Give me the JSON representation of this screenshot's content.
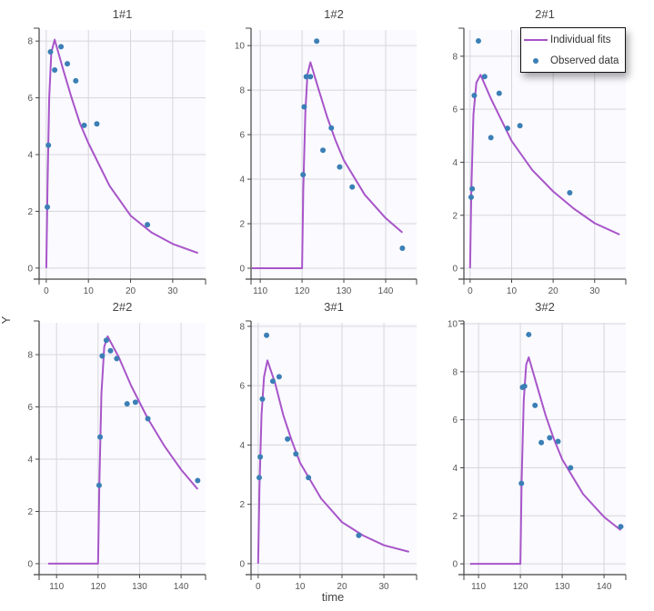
{
  "colors": {
    "fit": "#a855c9",
    "observed": "#3b7fb5",
    "plot_bg": "#fafaff",
    "grid": "#d6d6dc",
    "axis": "#444444"
  },
  "chart_data": {
    "type": "line",
    "xlabel": "time",
    "ylabel": "Y",
    "grid": true,
    "legend": {
      "placement": "top-right",
      "entries": [
        {
          "label": "Individual fits",
          "kind": "line"
        },
        {
          "label": "Observed data",
          "kind": "point"
        }
      ]
    },
    "panels": [
      {
        "title": "1#1",
        "xlim": [
          -1.7,
          37.8
        ],
        "ylim": [
          -0.39,
          8.39
        ],
        "xticks": [
          0,
          10,
          20,
          30
        ],
        "yticks": [
          0,
          2,
          4,
          6,
          8
        ],
        "observed": [
          [
            0.25,
            2.15
          ],
          [
            0.5,
            4.33
          ],
          [
            1,
            7.62
          ],
          [
            2,
            6.98
          ],
          [
            3.5,
            7.8
          ],
          [
            5,
            7.2
          ],
          [
            7,
            6.6
          ],
          [
            9,
            5.03
          ],
          [
            12,
            5.08
          ],
          [
            24,
            1.53
          ]
        ],
        "fit": [
          [
            0,
            0
          ],
          [
            0.3,
            3
          ],
          [
            0.7,
            6
          ],
          [
            1.2,
            7.6
          ],
          [
            2,
            8.05
          ],
          [
            4,
            7.0
          ],
          [
            6,
            6.0
          ],
          [
            8,
            5.1
          ],
          [
            10,
            4.4
          ],
          [
            15,
            2.9
          ],
          [
            20,
            1.85
          ],
          [
            25,
            1.25
          ],
          [
            30,
            0.85
          ],
          [
            36,
            0.53
          ]
        ]
      },
      {
        "title": "1#2",
        "xlim": [
          107.8,
          147.4
        ],
        "ylim": [
          -0.49,
          10.7
        ],
        "xticks": [
          110,
          120,
          130,
          140
        ],
        "yticks": [
          0,
          2,
          4,
          6,
          8,
          10
        ],
        "observed": [
          [
            120.25,
            4.2
          ],
          [
            120.5,
            7.25
          ],
          [
            121,
            8.6
          ],
          [
            122,
            8.6
          ],
          [
            123.5,
            10.2
          ],
          [
            125,
            5.3
          ],
          [
            127,
            6.3
          ],
          [
            129,
            4.55
          ],
          [
            132,
            3.65
          ],
          [
            144,
            0.9
          ]
        ],
        "fit": [
          [
            108,
            0
          ],
          [
            120,
            0
          ],
          [
            120.3,
            3.5
          ],
          [
            120.8,
            7
          ],
          [
            121.3,
            8.7
          ],
          [
            122,
            9.25
          ],
          [
            124,
            8.0
          ],
          [
            126,
            6.8
          ],
          [
            128,
            5.75
          ],
          [
            130,
            4.85
          ],
          [
            135,
            3.3
          ],
          [
            140,
            2.25
          ],
          [
            144,
            1.6
          ]
        ]
      },
      {
        "title": "2#1",
        "xlim": [
          -1.5,
          37.5
        ],
        "ylim": [
          -0.41,
          8.99
        ],
        "xticks": [
          0,
          10,
          20,
          30
        ],
        "yticks": [
          0,
          2,
          4,
          6,
          8
        ],
        "observed": [
          [
            0.25,
            2.68
          ],
          [
            0.5,
            3.0
          ],
          [
            1,
            6.52
          ],
          [
            2,
            8.58
          ],
          [
            3.5,
            7.23
          ],
          [
            5,
            4.93
          ],
          [
            7,
            6.6
          ],
          [
            9,
            5.28
          ],
          [
            12,
            5.38
          ],
          [
            24,
            2.85
          ]
        ],
        "fit": [
          [
            0,
            0
          ],
          [
            0.3,
            3
          ],
          [
            0.8,
            5.8
          ],
          [
            1.5,
            7
          ],
          [
            2.5,
            7.3
          ],
          [
            5,
            6.4
          ],
          [
            10,
            4.8
          ],
          [
            15,
            3.7
          ],
          [
            20,
            2.9
          ],
          [
            25,
            2.25
          ],
          [
            30,
            1.7
          ],
          [
            36,
            1.27
          ]
        ]
      },
      {
        "title": "2#2",
        "xlim": [
          105.8,
          145.9
        ],
        "ylim": [
          -0.42,
          9.22
        ],
        "xticks": [
          110,
          120,
          130,
          140
        ],
        "yticks": [
          0,
          2,
          4,
          6,
          8
        ],
        "observed": [
          [
            120.25,
            3.0
          ],
          [
            120.5,
            4.85
          ],
          [
            121,
            7.95
          ],
          [
            122,
            8.55
          ],
          [
            123,
            8.15
          ],
          [
            124.5,
            7.85
          ],
          [
            127,
            6.12
          ],
          [
            129,
            6.18
          ],
          [
            132,
            5.55
          ],
          [
            144,
            3.18
          ]
        ],
        "fit": [
          [
            108,
            0
          ],
          [
            120,
            0
          ],
          [
            120.3,
            3
          ],
          [
            120.8,
            6.5
          ],
          [
            121.5,
            8.3
          ],
          [
            122.3,
            8.7
          ],
          [
            125,
            7.9
          ],
          [
            128,
            6.8
          ],
          [
            132,
            5.55
          ],
          [
            136,
            4.5
          ],
          [
            140,
            3.6
          ],
          [
            144,
            2.85
          ]
        ]
      },
      {
        "title": "3#1",
        "xlim": [
          -1.7,
          37.8
        ],
        "ylim": [
          -0.37,
          8.12
        ],
        "xticks": [
          0,
          10,
          20,
          30
        ],
        "yticks": [
          0,
          2,
          4,
          6,
          8
        ],
        "observed": [
          [
            0.25,
            2.9
          ],
          [
            0.5,
            3.6
          ],
          [
            1,
            5.55
          ],
          [
            2,
            7.7
          ],
          [
            3.5,
            6.15
          ],
          [
            5,
            6.3
          ],
          [
            7,
            4.2
          ],
          [
            9,
            3.7
          ],
          [
            12,
            2.9
          ],
          [
            24,
            0.95
          ]
        ],
        "fit": [
          [
            0,
            0
          ],
          [
            0.3,
            2.5
          ],
          [
            0.8,
            5
          ],
          [
            1.4,
            6.3
          ],
          [
            2.2,
            6.85
          ],
          [
            4,
            6.1
          ],
          [
            6,
            5.0
          ],
          [
            8,
            4.15
          ],
          [
            10,
            3.4
          ],
          [
            15,
            2.2
          ],
          [
            20,
            1.4
          ],
          [
            25,
            0.95
          ],
          [
            30,
            0.62
          ],
          [
            36,
            0.4
          ]
        ]
      },
      {
        "title": "3#2",
        "xlim": [
          106.5,
          145.2
        ],
        "ylim": [
          -0.45,
          10.04
        ],
        "xticks": [
          110,
          120,
          130,
          140
        ],
        "yticks": [
          0,
          2,
          4,
          6,
          8,
          10
        ],
        "observed": [
          [
            120.25,
            3.35
          ],
          [
            120.5,
            7.35
          ],
          [
            121,
            7.4
          ],
          [
            122,
            9.55
          ],
          [
            123.5,
            6.6
          ],
          [
            125,
            5.05
          ],
          [
            127,
            5.25
          ],
          [
            129,
            5.1
          ],
          [
            132,
            4.0
          ],
          [
            144,
            1.55
          ]
        ],
        "fit": [
          [
            108,
            0
          ],
          [
            120,
            0
          ],
          [
            120.3,
            3.5
          ],
          [
            120.8,
            6.8
          ],
          [
            121.4,
            8.3
          ],
          [
            122,
            8.6
          ],
          [
            124,
            7.4
          ],
          [
            126,
            6.2
          ],
          [
            128,
            5.2
          ],
          [
            130,
            4.35
          ],
          [
            135,
            2.9
          ],
          [
            140,
            1.95
          ],
          [
            144,
            1.4
          ]
        ]
      }
    ]
  }
}
